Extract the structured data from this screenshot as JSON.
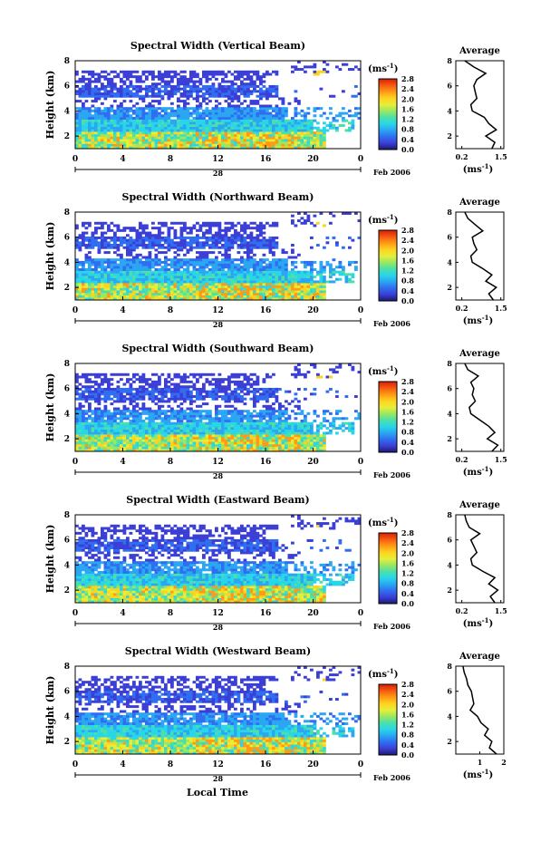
{
  "figure": {
    "bottom_xlabel": "Local Time",
    "date_label": "Feb 2006",
    "colorbar_unit": "(ms",
    "colorbar_unit_exp": "-1",
    "colorbar_unit_close": ")",
    "avg_unit": "(ms",
    "avg_unit_exp": "-1",
    "avg_unit_close": ")",
    "colorscale": [
      "#1a1a6e",
      "#3b3fd6",
      "#2f6ef0",
      "#2aa6f2",
      "#29d6e8",
      "#4ce0a8",
      "#9ae860",
      "#e6ee3a",
      "#ffd21e",
      "#ff9a14",
      "#f55a10",
      "#d81e0a"
    ]
  },
  "chart_data": [
    {
      "type": "heatmap",
      "title": "Spectral Width (Vertical Beam)",
      "ylabel": "Height (km)",
      "xlabel": "Local Time",
      "x_ticks": [
        "0",
        "4",
        "8",
        "12",
        "16",
        "20",
        "0"
      ],
      "x_day_label": "28",
      "y_ticks": [
        "2",
        "4",
        "6",
        "8"
      ],
      "colorbar_ticks": [
        "0.0",
        "0.4",
        "0.8",
        "1.2",
        "1.6",
        "2.0",
        "2.4",
        "2.8"
      ],
      "avg_title": "Average",
      "avg_xticks": [
        "0.2",
        "1.5"
      ],
      "avg_yticks": [
        "2",
        "4",
        "6",
        "8"
      ],
      "avg_profile": {
        "height_km": [
          1.0,
          1.5,
          2.0,
          2.5,
          3.0,
          3.5,
          4.0,
          4.5,
          5.0,
          5.5,
          6.0,
          6.5,
          7.0,
          7.5,
          8.0
        ],
        "width": [
          1.2,
          1.3,
          1.0,
          1.35,
          1.1,
          0.95,
          0.55,
          0.5,
          0.7,
          0.65,
          0.6,
          0.7,
          1.0,
          0.6,
          0.3
        ]
      }
    },
    {
      "type": "heatmap",
      "title": "Spectral Width (Northward Beam)",
      "ylabel": "Height (km)",
      "xlabel": "Local Time",
      "x_ticks": [
        "0",
        "4",
        "8",
        "12",
        "16",
        "20",
        "0"
      ],
      "x_day_label": "28",
      "y_ticks": [
        "2",
        "4",
        "6",
        "8"
      ],
      "colorbar_ticks": [
        "0.0",
        "0.4",
        "0.8",
        "1.2",
        "1.6",
        "2.0",
        "2.4",
        "2.8"
      ],
      "avg_title": "Average",
      "avg_xticks": [
        "0.2",
        "1.5"
      ],
      "avg_yticks": [
        "2",
        "4",
        "6",
        "8"
      ],
      "avg_profile": {
        "height_km": [
          1.0,
          1.5,
          2.0,
          2.5,
          3.0,
          3.5,
          4.0,
          4.5,
          5.0,
          5.5,
          6.0,
          6.5,
          7.0,
          7.5,
          8.0
        ],
        "width": [
          1.25,
          1.1,
          1.35,
          1.0,
          1.2,
          0.9,
          0.55,
          0.5,
          0.7,
          0.6,
          0.55,
          0.9,
          0.65,
          0.4,
          0.3
        ]
      }
    },
    {
      "type": "heatmap",
      "title": "Spectral Width (Southward Beam)",
      "ylabel": "Height (km)",
      "xlabel": "Local Time",
      "x_ticks": [
        "0",
        "4",
        "8",
        "12",
        "16",
        "20",
        "0"
      ],
      "x_day_label": "28",
      "y_ticks": [
        "2",
        "4",
        "6",
        "8"
      ],
      "colorbar_ticks": [
        "0.0",
        "0.4",
        "0.8",
        "1.2",
        "1.6",
        "2.0",
        "2.4",
        "2.8"
      ],
      "avg_title": "Average",
      "avg_xticks": [
        "0.2",
        "1.5"
      ],
      "avg_yticks": [
        "2",
        "4",
        "6",
        "8"
      ],
      "avg_profile": {
        "height_km": [
          1.0,
          1.5,
          2.0,
          2.5,
          3.0,
          3.5,
          4.0,
          4.5,
          5.0,
          5.5,
          6.0,
          6.5,
          7.0,
          7.5,
          8.0
        ],
        "width": [
          1.2,
          1.4,
          1.05,
          1.3,
          1.1,
          0.8,
          0.5,
          0.45,
          0.65,
          0.55,
          0.6,
          0.5,
          0.75,
          0.4,
          0.3
        ]
      }
    },
    {
      "type": "heatmap",
      "title": "Spectral Width (Eastward Beam)",
      "ylabel": "Height (km)",
      "xlabel": "Local Time",
      "x_ticks": [
        "0",
        "4",
        "8",
        "12",
        "16",
        "20",
        "0"
      ],
      "x_day_label": "28",
      "y_ticks": [
        "2",
        "4",
        "6",
        "8"
      ],
      "colorbar_ticks": [
        "0.0",
        "0.4",
        "0.8",
        "1.2",
        "1.6",
        "2.0",
        "2.4",
        "2.8"
      ],
      "avg_title": "Average",
      "avg_xticks": [
        "0.2",
        "1.5"
      ],
      "avg_yticks": [
        "2",
        "4",
        "6",
        "8"
      ],
      "avg_profile": {
        "height_km": [
          1.0,
          1.5,
          2.0,
          2.5,
          3.0,
          3.5,
          4.0,
          4.5,
          5.0,
          5.5,
          6.0,
          6.5,
          7.0,
          7.5,
          8.0
        ],
        "width": [
          1.3,
          1.15,
          1.4,
          1.1,
          1.3,
          0.9,
          0.55,
          0.5,
          0.7,
          0.6,
          0.5,
          0.8,
          0.45,
          0.35,
          0.3
        ]
      }
    },
    {
      "type": "heatmap",
      "title": "Spectral Width (Westward Beam)",
      "ylabel": "Height (km)",
      "xlabel": "Local Time",
      "x_ticks": [
        "0",
        "4",
        "8",
        "12",
        "16",
        "20",
        "0"
      ],
      "x_day_label": "28",
      "y_ticks": [
        "2",
        "4",
        "6",
        "8"
      ],
      "colorbar_ticks": [
        "0.0",
        "0.4",
        "0.8",
        "1.2",
        "1.6",
        "2.0",
        "2.4",
        "2.8"
      ],
      "avg_title": "Average",
      "avg_xticks": [
        "1",
        "2"
      ],
      "avg_yticks": [
        "2",
        "4",
        "6",
        "8"
      ],
      "avg_profile": {
        "height_km": [
          1.0,
          1.5,
          2.0,
          2.5,
          3.0,
          3.5,
          4.0,
          4.5,
          5.0,
          5.5,
          6.0,
          6.5,
          7.0,
          7.5,
          8.0
        ],
        "width": [
          1.7,
          1.4,
          1.5,
          1.2,
          1.35,
          1.05,
          0.9,
          0.6,
          0.75,
          0.7,
          0.65,
          0.5,
          0.45,
          0.35,
          0.3
        ]
      }
    }
  ]
}
